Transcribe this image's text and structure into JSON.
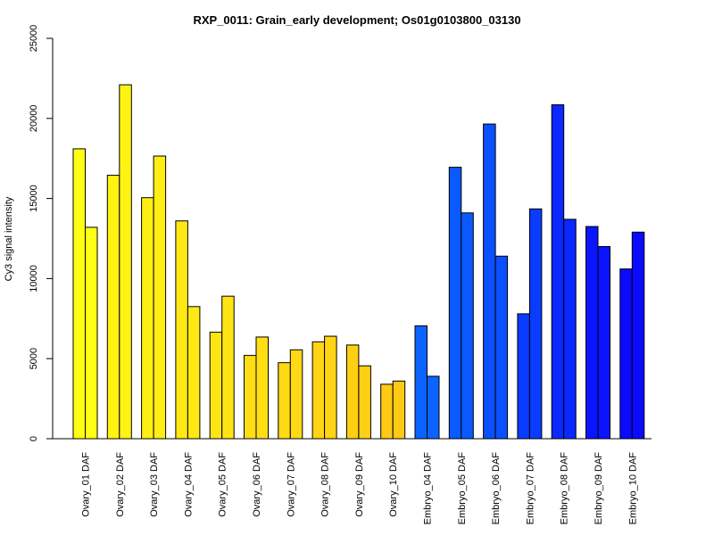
{
  "chart_data": {
    "type": "bar",
    "title": "RXP_0011: Grain_early development; Os01g0103800_03130",
    "xlabel": "",
    "ylabel": "Cy3 signal intensity",
    "ylim": [
      0,
      25000
    ],
    "yticks": [
      0,
      5000,
      10000,
      15000,
      20000,
      25000
    ],
    "grid": false,
    "categories": [
      "Ovary_01 DAF",
      "Ovary_02 DAF",
      "Ovary_03 DAF",
      "Ovary_04 DAF",
      "Ovary_05 DAF",
      "Ovary_06 DAF",
      "Ovary_07 DAF",
      "Ovary_08 DAF",
      "Ovary_09 DAF",
      "Ovary_10 DAF",
      "Embryo_04 DAF",
      "Embryo_05 DAF",
      "Embryo_06 DAF",
      "Embryo_07 DAF",
      "Embryo_08 DAF",
      "Embryo_09 DAF",
      "Embryo_10 DAF"
    ],
    "colors": [
      "#ffff14",
      "#fff314",
      "#ffee14",
      "#ffe914",
      "#ffe414",
      "#ffde14",
      "#ffd914",
      "#ffd414",
      "#ffcf14",
      "#ffca14",
      "#0a64ff",
      "#0a5aff",
      "#0a50ff",
      "#0a3cff",
      "#0a28ff",
      "#0a14ff",
      "#0a0aff"
    ],
    "series": [
      {
        "values": [
          18100,
          16450,
          15050,
          13600,
          6650,
          5200,
          4750,
          6050,
          5850,
          3400,
          7050,
          16950,
          19650,
          7800,
          20850,
          13250,
          10600
        ]
      },
      {
        "values": [
          13200,
          22100,
          17650,
          8250,
          8900,
          6350,
          5550,
          6400,
          4550,
          3600,
          3900,
          14100,
          11400,
          14350,
          13700,
          12000,
          12900
        ]
      }
    ]
  }
}
